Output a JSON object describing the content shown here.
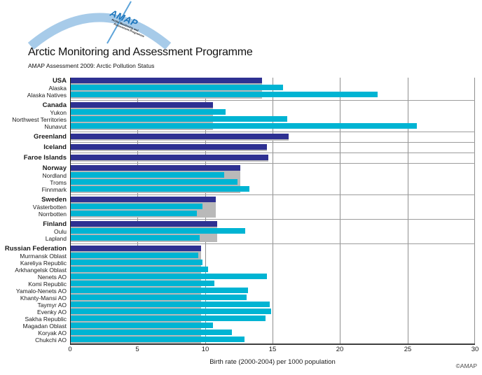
{
  "header": {
    "logo": {
      "acronym": "AMAP",
      "tagline_line1": "Arctic Monitoring and",
      "tagline_line2": "Assessment Programme"
    },
    "title": "Arctic Monitoring and Assessment Programme",
    "subtitle": "AMAP Assessment 2009: Arctic Pollution Status"
  },
  "footer": {
    "copyright": "©AMAP"
  },
  "chart_data": {
    "type": "bar",
    "orientation": "horizontal",
    "xlabel": "Birth rate (2000-2004) per 1000 population",
    "xlim": [
      0,
      30
    ],
    "xticks": [
      0,
      5,
      10,
      15,
      20,
      25,
      30
    ],
    "grid": "vertical-gridlines-and-group-separators",
    "legend": "none",
    "colors": {
      "country_bar": "#2e3192",
      "region_bar": "#00b4d3",
      "country_average_band": "#b9b9b9"
    },
    "groups": [
      {
        "country": "USA",
        "value": 14.2,
        "regions": [
          {
            "label": "Alaska",
            "value": 15.8
          },
          {
            "label": "Alaska Natives",
            "value": 22.8
          }
        ]
      },
      {
        "country": "Canada",
        "value": 10.6,
        "regions": [
          {
            "label": "Yukon",
            "value": 11.5
          },
          {
            "label": "Northwest Territories",
            "value": 16.1
          },
          {
            "label": "Nunavut",
            "value": 25.7
          }
        ]
      },
      {
        "country": "Greenland",
        "value": 16.2,
        "regions": []
      },
      {
        "country": "Iceland",
        "value": 14.6,
        "regions": []
      },
      {
        "country": "Faroe Islands",
        "value": 14.7,
        "regions": []
      },
      {
        "country": "Norway",
        "value": 12.6,
        "regions": [
          {
            "label": "Nordland",
            "value": 11.4
          },
          {
            "label": "Troms",
            "value": 12.4
          },
          {
            "label": "Finnmark",
            "value": 13.3
          }
        ]
      },
      {
        "country": "Sweden",
        "value": 10.8,
        "regions": [
          {
            "label": "Västerbotten",
            "value": 9.8
          },
          {
            "label": "Norrbotten",
            "value": 9.4
          }
        ]
      },
      {
        "country": "Finland",
        "value": 10.9,
        "regions": [
          {
            "label": "Oulu",
            "value": 13.0
          },
          {
            "label": "Lapland",
            "value": 9.6
          }
        ]
      },
      {
        "country": "Russian Federation",
        "value": 9.7,
        "regions": [
          {
            "label": "Murmansk Oblast",
            "value": 9.5
          },
          {
            "label": "Kareliya Republic",
            "value": 9.8
          },
          {
            "label": "Arkhangelsk Oblast",
            "value": 10.2
          },
          {
            "label": "Nenets AO",
            "value": 14.6
          },
          {
            "label": "Komi Republic",
            "value": 10.7
          },
          {
            "label": "Yamalo-Nenets AO",
            "value": 13.2
          },
          {
            "label": "Khanty-Mansi AO",
            "value": 13.1
          },
          {
            "label": "Taymyr AO",
            "value": 14.8
          },
          {
            "label": "Evenky AO",
            "value": 14.9
          },
          {
            "label": "Sakha Republic",
            "value": 14.5
          },
          {
            "label": "Magadan Oblast",
            "value": 10.6
          },
          {
            "label": "Koryak AO",
            "value": 12.0
          },
          {
            "label": "Chukchi AO",
            "value": 12.9
          }
        ]
      }
    ]
  }
}
